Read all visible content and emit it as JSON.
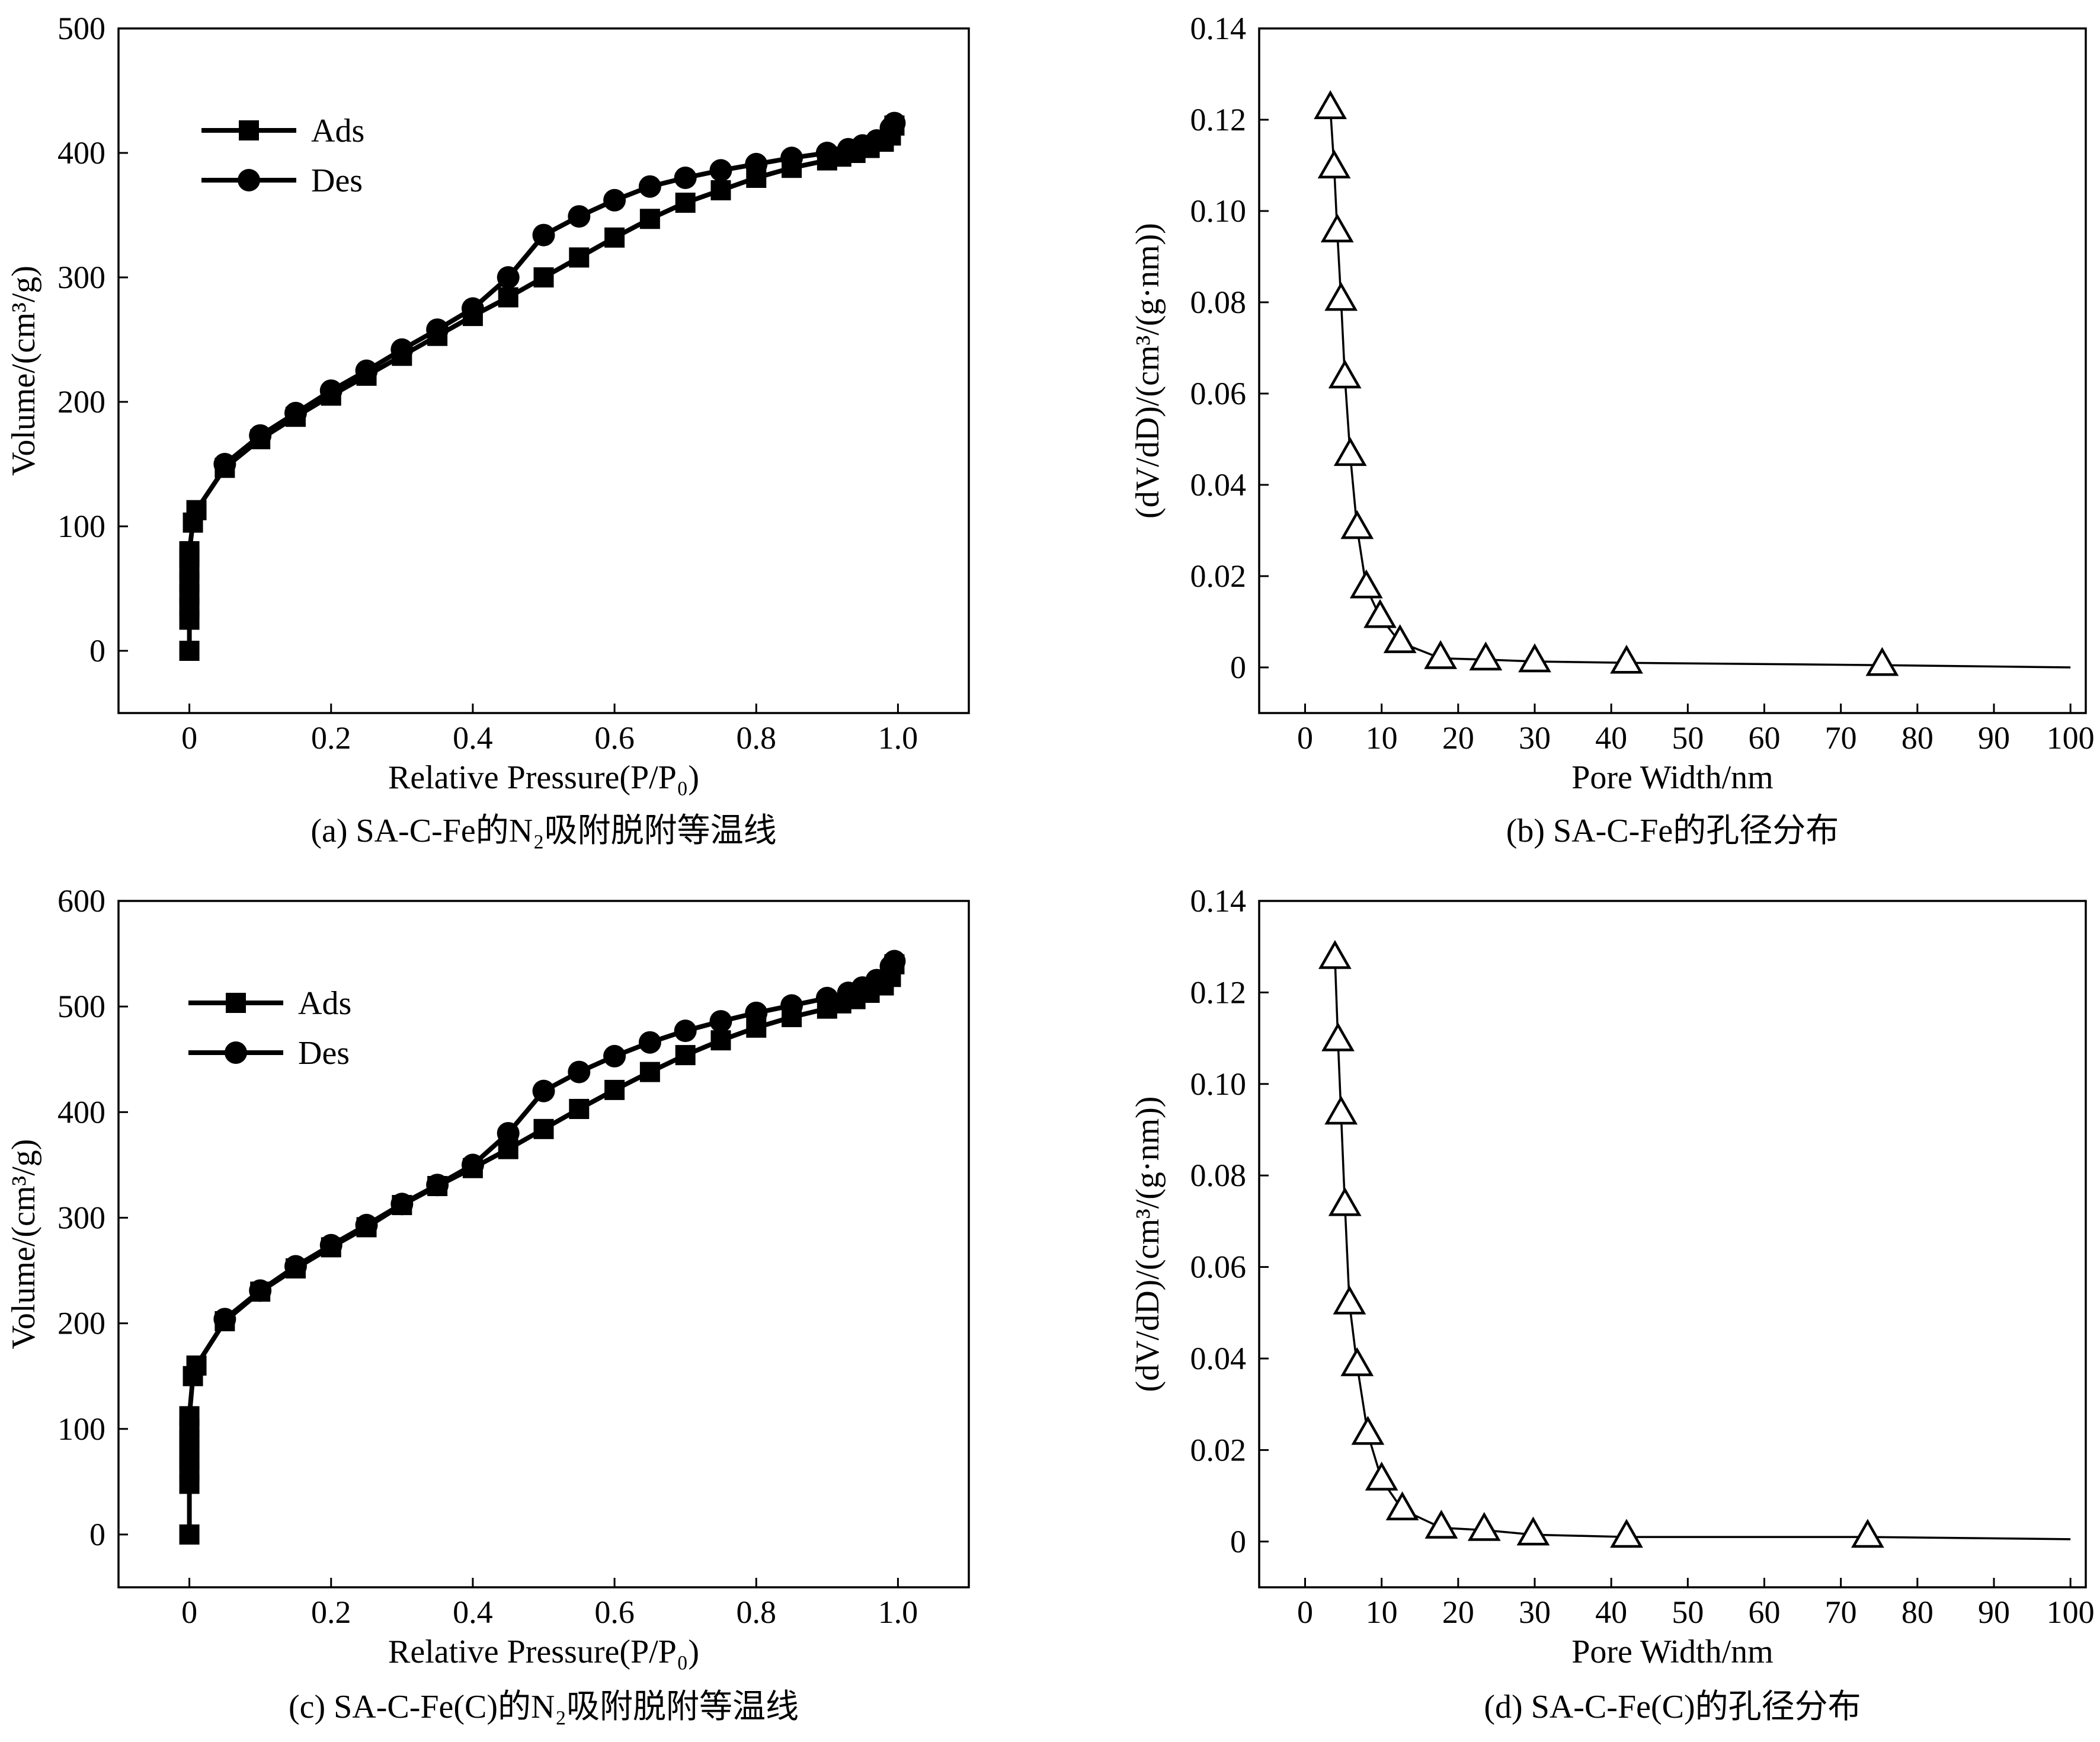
{
  "colors": {
    "ink": "#000000",
    "background": "#ffffff"
  },
  "chart_data": [
    {
      "id": "a",
      "type": "line",
      "caption": "(a) SA-C-Fe的N₂吸附脱附等温线",
      "xlabel": "Relative Pressure(P/P₀)",
      "ylabel": "Volume/(cm³/g)",
      "xlim": [
        -0.1,
        1.1
      ],
      "ylim": [
        -50,
        500
      ],
      "xticks": [
        0,
        0.2,
        0.4,
        0.6,
        0.8,
        1.0
      ],
      "xtick_labels": [
        "0",
        "0.2",
        "0.4",
        "0.6",
        "0.8",
        "1.0"
      ],
      "yticks": [
        0,
        100,
        200,
        300,
        400,
        500
      ],
      "ytick_labels": [
        "0",
        "100",
        "200",
        "300",
        "400",
        "500"
      ],
      "legend_position": "top-left",
      "grid": false,
      "series": [
        {
          "name": "Ads",
          "marker": "square",
          "x": [
            0.0,
            0.0,
            0.0,
            0.0,
            0.0,
            0.0,
            0.0,
            0.0,
            0.005,
            0.01,
            0.05,
            0.1,
            0.15,
            0.2,
            0.25,
            0.3,
            0.35,
            0.4,
            0.45,
            0.5,
            0.55,
            0.6,
            0.65,
            0.7,
            0.75,
            0.8,
            0.85,
            0.9,
            0.92,
            0.94,
            0.96,
            0.98,
            0.99,
            0.995
          ],
          "y": [
            0,
            25,
            35,
            45,
            55,
            65,
            75,
            80,
            103,
            113,
            147,
            170,
            188,
            205,
            221,
            237,
            253,
            269,
            284,
            300,
            316,
            332,
            347,
            360,
            370,
            380,
            388,
            394,
            397,
            400,
            404,
            409,
            414,
            422
          ]
        },
        {
          "name": "Des",
          "marker": "circle",
          "x": [
            0.995,
            0.99,
            0.97,
            0.95,
            0.93,
            0.9,
            0.85,
            0.8,
            0.75,
            0.7,
            0.65,
            0.6,
            0.55,
            0.5,
            0.45,
            0.4,
            0.35,
            0.3,
            0.25,
            0.2,
            0.15,
            0.1,
            0.05
          ],
          "y": [
            424,
            420,
            410,
            406,
            403,
            400,
            396,
            391,
            386,
            380,
            373,
            362,
            349,
            334,
            300,
            275,
            258,
            242,
            225,
            209,
            191,
            173,
            150
          ]
        }
      ]
    },
    {
      "id": "b",
      "type": "line",
      "caption": "(b) SA-C-Fe的孔径分布",
      "xlabel": "Pore Width/nm",
      "ylabel": "(dV/dD)/(cm³/(g·nm))",
      "xlim": [
        -6,
        102
      ],
      "ylim": [
        -0.01,
        0.14
      ],
      "xticks": [
        0,
        10,
        20,
        30,
        40,
        50,
        60,
        70,
        80,
        90,
        100
      ],
      "xtick_labels": [
        "0",
        "10",
        "20",
        "30",
        "40",
        "50",
        "60",
        "70",
        "80",
        "90",
        "100"
      ],
      "yticks": [
        0,
        0.02,
        0.04,
        0.06,
        0.08,
        0.1,
        0.12,
        0.14
      ],
      "ytick_labels": [
        "0",
        "0.02",
        "0.04",
        "0.06",
        "0.08",
        "0.10",
        "0.12",
        "0.14"
      ],
      "grid": false,
      "series": [
        {
          "marker": "triangle",
          "x": [
            3.3,
            3.8,
            4.2,
            4.7,
            5.2,
            5.9,
            6.8,
            8.0,
            9.8,
            12.4,
            17.7,
            23.6,
            30.0,
            42.0,
            75.4,
            100
          ],
          "y": [
            0.1225,
            0.1095,
            0.0955,
            0.0805,
            0.0635,
            0.0465,
            0.0305,
            0.0175,
            0.011,
            0.0055,
            0.002,
            0.0017,
            0.0013,
            0.001,
            0.0005,
            0.0
          ]
        }
      ]
    },
    {
      "id": "c",
      "type": "line",
      "caption": "(c) SA-C-Fe(C)的N₂吸附脱附等温线",
      "xlabel": "Relative Pressure(P/P₀)",
      "ylabel": "Volume/(cm³/g)",
      "xlim": [
        -0.1,
        1.1
      ],
      "ylim": [
        -50,
        600
      ],
      "xticks": [
        0,
        0.2,
        0.4,
        0.6,
        0.8,
        1.0
      ],
      "xtick_labels": [
        "0",
        "0.2",
        "0.4",
        "0.6",
        "0.8",
        "1.0"
      ],
      "yticks": [
        0,
        100,
        200,
        300,
        400,
        500,
        600
      ],
      "ytick_labels": [
        "0",
        "100",
        "200",
        "300",
        "400",
        "500",
        "600"
      ],
      "legend_position": "top-left",
      "grid": false,
      "series": [
        {
          "name": "Ads",
          "marker": "square",
          "x": [
            0.0,
            0.0,
            0.0,
            0.0,
            0.0,
            0.0,
            0.0,
            0.0,
            0.005,
            0.01,
            0.05,
            0.1,
            0.15,
            0.2,
            0.25,
            0.3,
            0.35,
            0.4,
            0.45,
            0.5,
            0.55,
            0.6,
            0.65,
            0.7,
            0.75,
            0.8,
            0.85,
            0.9,
            0.92,
            0.94,
            0.96,
            0.98,
            0.99,
            0.995
          ],
          "y": [
            0,
            48,
            60,
            70,
            80,
            90,
            100,
            112,
            150,
            160,
            202,
            230,
            252,
            272,
            291,
            312,
            330,
            347,
            365,
            384,
            403,
            421,
            438,
            454,
            468,
            480,
            490,
            498,
            503,
            507,
            513,
            520,
            528,
            540
          ]
        },
        {
          "name": "Des",
          "marker": "circle",
          "x": [
            0.995,
            0.99,
            0.97,
            0.95,
            0.93,
            0.9,
            0.85,
            0.8,
            0.75,
            0.7,
            0.65,
            0.6,
            0.55,
            0.5,
            0.45,
            0.4,
            0.35,
            0.3,
            0.25,
            0.2,
            0.15,
            0.1,
            0.05
          ],
          "y": [
            543,
            538,
            525,
            518,
            513,
            508,
            501,
            494,
            486,
            477,
            466,
            453,
            438,
            420,
            380,
            350,
            331,
            313,
            293,
            274,
            254,
            231,
            204
          ]
        }
      ]
    },
    {
      "id": "d",
      "type": "line",
      "caption": "(d) SA-C-Fe(C)的孔径分布",
      "xlabel": "Pore Width/nm",
      "ylabel": "(dV/dD)/(cm³/(g·nm))",
      "xlim": [
        -6,
        102
      ],
      "ylim": [
        -0.01,
        0.14
      ],
      "xticks": [
        0,
        10,
        20,
        30,
        40,
        50,
        60,
        70,
        80,
        90,
        100
      ],
      "xtick_labels": [
        "0",
        "10",
        "20",
        "30",
        "40",
        "50",
        "60",
        "70",
        "80",
        "90",
        "100"
      ],
      "yticks": [
        0,
        0.02,
        0.04,
        0.06,
        0.08,
        0.1,
        0.12,
        0.14
      ],
      "ytick_labels": [
        "0",
        "0.02",
        "0.04",
        "0.06",
        "0.08",
        "0.10",
        "0.12",
        "0.14"
      ],
      "grid": false,
      "series": [
        {
          "marker": "triangle",
          "x": [
            3.9,
            4.3,
            4.7,
            5.2,
            5.8,
            6.8,
            8.2,
            10.0,
            12.7,
            17.8,
            23.4,
            29.8,
            42.0,
            73.5,
            100
          ],
          "y": [
            0.1275,
            0.1095,
            0.0935,
            0.0735,
            0.052,
            0.0385,
            0.0235,
            0.0135,
            0.007,
            0.003,
            0.0025,
            0.0015,
            0.001,
            0.001,
            0.0005
          ]
        }
      ]
    }
  ]
}
